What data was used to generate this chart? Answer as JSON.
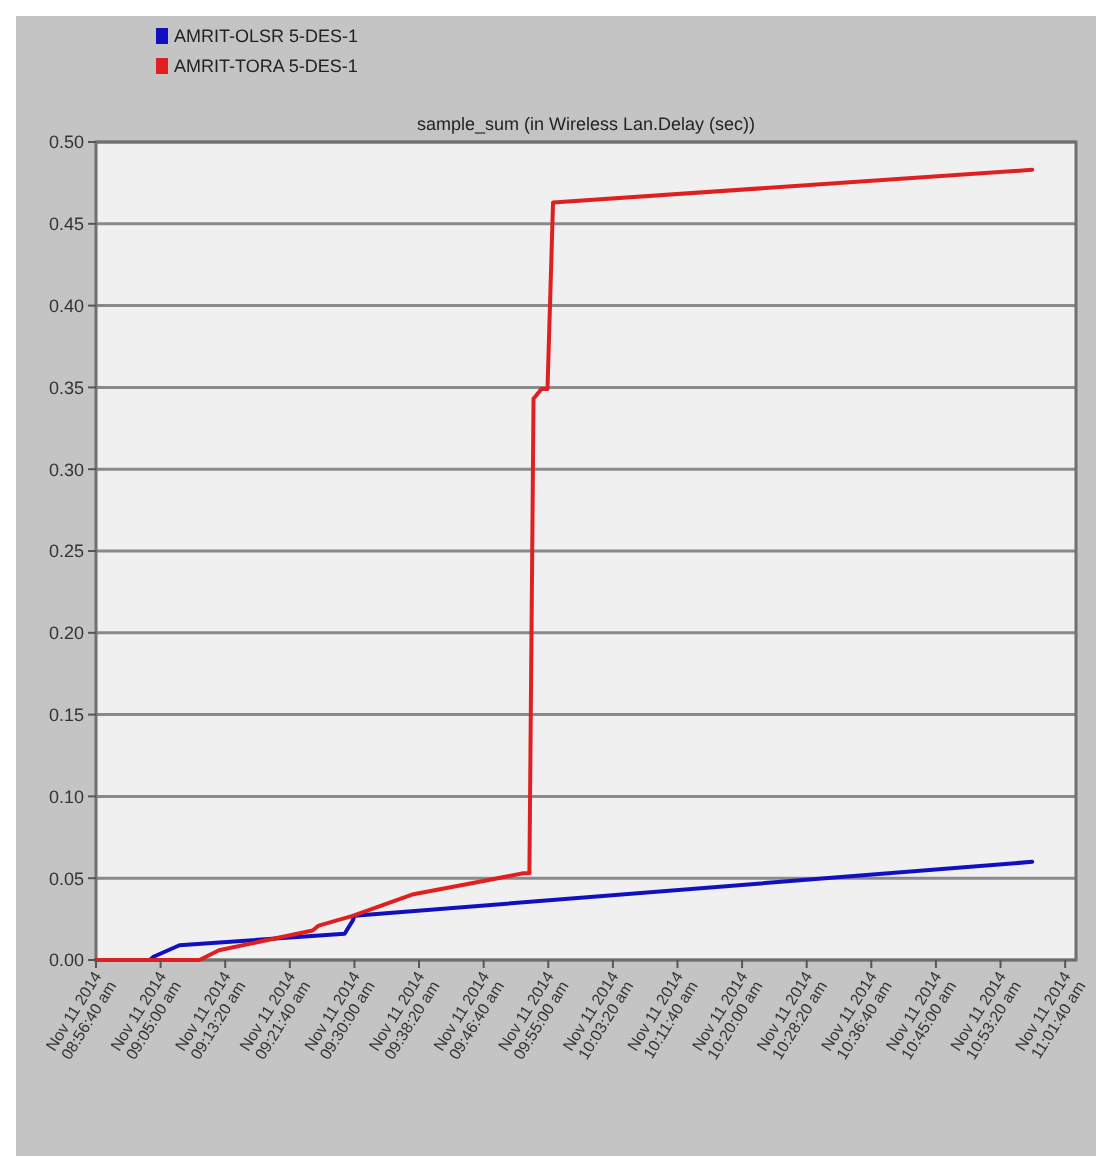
{
  "chart_data": {
    "type": "line",
    "title": "sample_sum (in Wireless Lan.Delay (sec))",
    "series": [
      {
        "name": "AMRIT-OLSR 5-DES-1",
        "color": "#1010c0",
        "x": [
          "2014-11-11T08:56:40",
          "2014-11-11T09:03:36",
          "2014-11-11T09:04:05",
          "2014-11-11T09:07:26",
          "2014-11-11T09:28:44",
          "2014-11-11T09:29:46",
          "2014-11-11T09:30:00",
          "2014-11-11T10:57:25"
        ],
        "values": [
          0,
          0,
          0.002,
          0.009,
          0.016,
          0.024,
          0.027,
          0.06
        ]
      },
      {
        "name": "AMRIT-TORA 5-DES-1",
        "color": "#e02020",
        "x": [
          "2014-11-11T08:56:40",
          "2014-11-11T09:10:01",
          "2014-11-11T09:12:32",
          "2014-11-11T09:24:36",
          "2014-11-11T09:25:23",
          "2014-11-11T09:29:46",
          "2014-11-11T09:37:26",
          "2014-11-11T09:44:06",
          "2014-11-11T09:51:47",
          "2014-11-11T09:52:34",
          "2014-11-11T09:53:06",
          "2014-11-11T09:54:07",
          "2014-11-11T09:54:54",
          "2014-11-11T09:55:37",
          "2014-11-11T10:57:25"
        ],
        "values": [
          0,
          0,
          0.006,
          0.018,
          0.021,
          0.027,
          0.04,
          0.046,
          0.053,
          0.053,
          0.343,
          0.349,
          0.349,
          0.463,
          0.483
        ]
      }
    ],
    "xlim": [
      "2014-11-11T08:56:40",
      "2014-11-11T11:03:04"
    ],
    "xticks": [
      {
        "value": "2014-11-11T08:56:40",
        "label": "Nov 11 2014\n08:56:40 am"
      },
      {
        "value": "2014-11-11T09:05:00",
        "label": "Nov 11 2014\n09:05:00 am"
      },
      {
        "value": "2014-11-11T09:13:20",
        "label": "Nov 11 2014\n09:13:20 am"
      },
      {
        "value": "2014-11-11T09:21:40",
        "label": "Nov 11 2014\n09:21:40 am"
      },
      {
        "value": "2014-11-11T09:30:00",
        "label": "Nov 11 2014\n09:30:00 am"
      },
      {
        "value": "2014-11-11T09:38:20",
        "label": "Nov 11 2014\n09:38:20 am"
      },
      {
        "value": "2014-11-11T09:46:40",
        "label": "Nov 11 2014\n09:46:40 am"
      },
      {
        "value": "2014-11-11T09:55:00",
        "label": "Nov 11 2014\n09:55:00 am"
      },
      {
        "value": "2014-11-11T10:03:20",
        "label": "Nov 11 2014\n10:03:20 am"
      },
      {
        "value": "2014-11-11T10:11:40",
        "label": "Nov 11 2014\n10:11:40 am"
      },
      {
        "value": "2014-11-11T10:20:00",
        "label": "Nov 11 2014\n10:20:00 am"
      },
      {
        "value": "2014-11-11T10:28:20",
        "label": "Nov 11 2014\n10:28:20 am"
      },
      {
        "value": "2014-11-11T10:36:40",
        "label": "Nov 11 2014\n10:36:40 am"
      },
      {
        "value": "2014-11-11T10:45:00",
        "label": "Nov 11 2014\n10:45:00 am"
      },
      {
        "value": "2014-11-11T10:53:20",
        "label": "Nov 11 2014\n10:53:20 am"
      },
      {
        "value": "2014-11-11T11:01:40",
        "label": "Nov 11 2014\n11:01:40 am"
      }
    ],
    "ylim": [
      0,
      0.5
    ],
    "yticks": [
      {
        "value": 0,
        "label": "0.00"
      },
      {
        "value": 0.05,
        "label": "0.05"
      },
      {
        "value": 0.1,
        "label": "0.10"
      },
      {
        "value": 0.15,
        "label": "0.15"
      },
      {
        "value": 0.2,
        "label": "0.20"
      },
      {
        "value": 0.25,
        "label": "0.25"
      },
      {
        "value": 0.3,
        "label": "0.30"
      },
      {
        "value": 0.35,
        "label": "0.35"
      },
      {
        "value": 0.4,
        "label": "0.40"
      },
      {
        "value": 0.45,
        "label": "0.45"
      },
      {
        "value": 0.5,
        "label": "0.50"
      }
    ],
    "grid": "y",
    "legend": "top left"
  }
}
